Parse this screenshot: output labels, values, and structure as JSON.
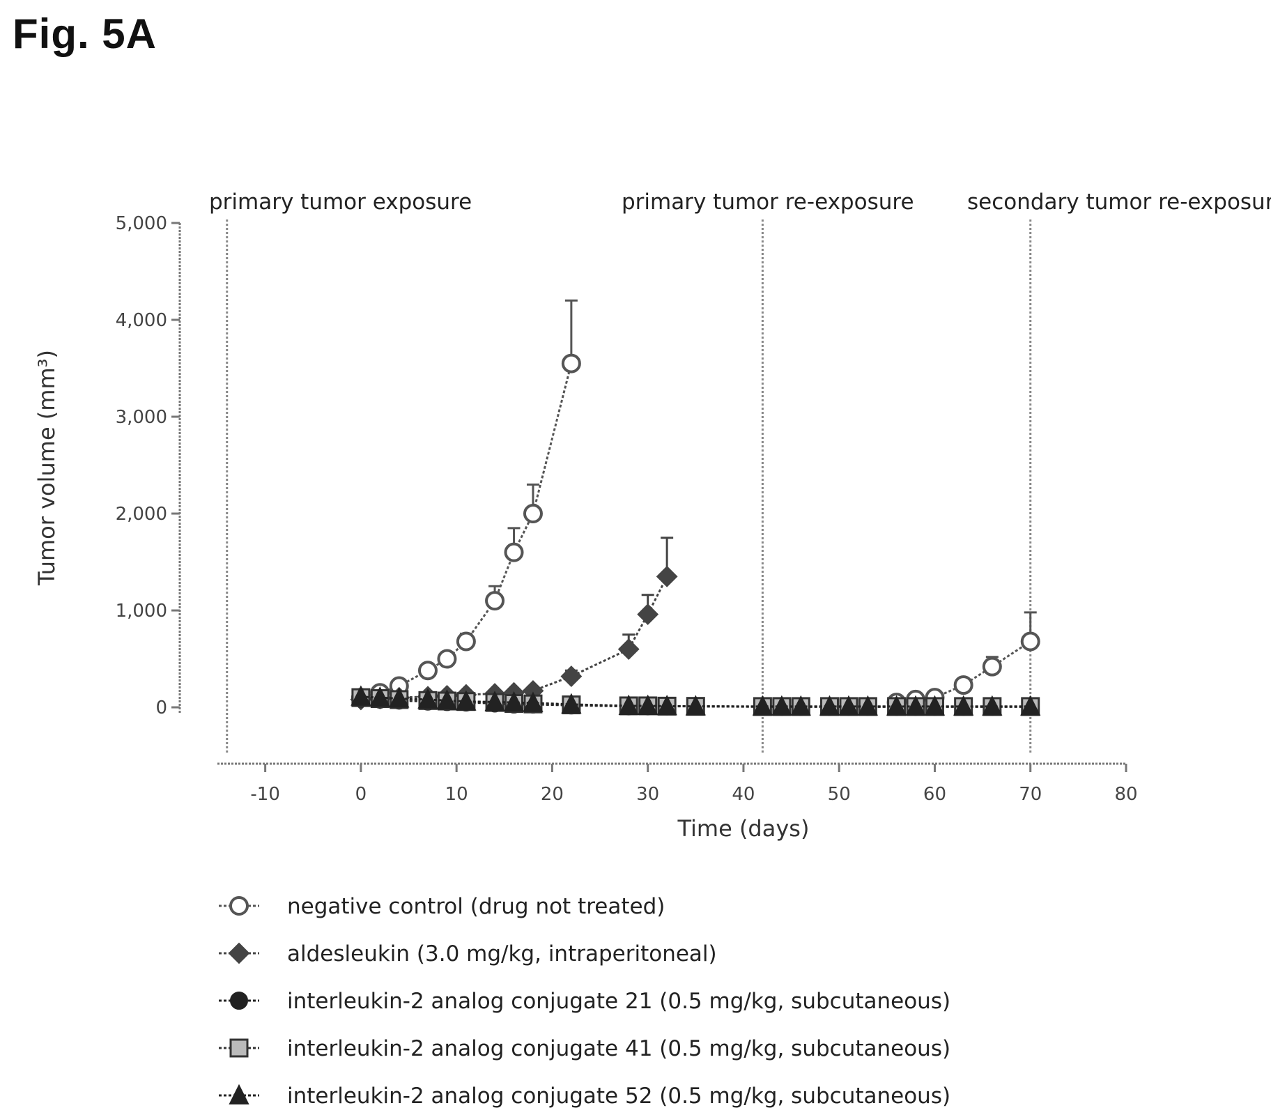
{
  "figure": {
    "title": "Fig. 5A"
  },
  "chart_data": {
    "type": "line",
    "title": "",
    "xlabel": "Time (days)",
    "ylabel": "Tumor volume (mm³)",
    "xlim": [
      -15,
      80
    ],
    "ylim": [
      -50,
      5000
    ],
    "x_ticks": [
      -10,
      0,
      10,
      20,
      30,
      40,
      50,
      60,
      70,
      80
    ],
    "x_tick_labels": [
      "-10",
      "0",
      "10",
      "20",
      "30",
      "40",
      "50",
      "60",
      "70",
      "80"
    ],
    "y_ticks": [
      0,
      1000,
      2000,
      3000,
      4000,
      5000
    ],
    "y_tick_labels": [
      "0",
      "1,000",
      "2,000",
      "3,000",
      "4,000",
      "5,000"
    ],
    "grid": false,
    "legend_position": "bottom",
    "annotations": [
      {
        "x": -14,
        "text": "primary tumor exposure"
      },
      {
        "x": 42,
        "text": "primary tumor re-exposure"
      },
      {
        "x": 70,
        "text": "secondary tumor re-exposure"
      }
    ],
    "series": [
      {
        "name": "negative control (drug not treated)",
        "marker": "open-circle",
        "color": "#555555",
        "segments": [
          {
            "x": [
              0,
              2,
              4,
              7,
              9,
              11,
              14,
              16,
              18,
              22
            ],
            "y": [
              100,
              150,
              220,
              380,
              500,
              680,
              1100,
              1600,
              2000,
              3550
            ],
            "err": [
              0,
              0,
              30,
              50,
              60,
              80,
              150,
              250,
              300,
              650
            ]
          },
          {
            "x": [
              56,
              58,
              60,
              63,
              66,
              70
            ],
            "y": [
              50,
              80,
              100,
              230,
              420,
              680
            ],
            "err": [
              0,
              0,
              20,
              50,
              100,
              300
            ]
          }
        ]
      },
      {
        "name": "aldesleukin (3.0 mg/kg, intraperitoneal)",
        "marker": "diamond",
        "color": "#444444",
        "segments": [
          {
            "x": [
              0,
              2,
              4,
              7,
              9,
              11,
              14,
              16,
              18,
              22,
              28,
              30,
              32
            ],
            "y": [
              80,
              90,
              100,
              110,
              120,
              130,
              140,
              150,
              170,
              320,
              600,
              960,
              1350
            ],
            "err": [
              0,
              0,
              0,
              0,
              0,
              0,
              30,
              30,
              40,
              60,
              150,
              200,
              400
            ]
          }
        ]
      },
      {
        "name": "interleukin-2 analog conjugate 21 (0.5 mg/kg, subcutaneous)",
        "marker": "filled-circle",
        "color": "#222222",
        "segments": [
          {
            "x": [
              0,
              2,
              4,
              7,
              9,
              11,
              14,
              16,
              18,
              22,
              28,
              30,
              32,
              35,
              42,
              44,
              46,
              49,
              51,
              53,
              56,
              58,
              60,
              63,
              66,
              70
            ],
            "y": [
              90,
              80,
              70,
              60,
              55,
              50,
              40,
              30,
              30,
              20,
              10,
              10,
              10,
              10,
              5,
              5,
              5,
              5,
              5,
              5,
              5,
              5,
              5,
              5,
              5,
              5
            ],
            "err": []
          }
        ]
      },
      {
        "name": "interleukin-2 analog conjugate 41 (0.5 mg/kg, subcutaneous)",
        "marker": "open-square",
        "color": "#333333",
        "segments": [
          {
            "x": [
              0,
              2,
              4,
              7,
              9,
              11,
              14,
              16,
              18,
              22,
              28,
              30,
              32,
              35,
              42,
              44,
              46,
              49,
              51,
              53,
              56,
              58,
              60,
              63,
              66,
              70
            ],
            "y": [
              100,
              90,
              80,
              70,
              65,
              60,
              50,
              40,
              35,
              25,
              15,
              15,
              12,
              10,
              8,
              8,
              8,
              8,
              8,
              8,
              8,
              8,
              8,
              8,
              8,
              8
            ],
            "err": []
          }
        ]
      },
      {
        "name": "interleukin-2 analog conjugate 52 (0.5 mg/kg, subcutaneous)",
        "marker": "triangle",
        "color": "#222222",
        "segments": [
          {
            "x": [
              0,
              2,
              4,
              7,
              9,
              11,
              14,
              16,
              18,
              22,
              28,
              30,
              32,
              35,
              42,
              44,
              46,
              49,
              51,
              53,
              56,
              58,
              60,
              63,
              66,
              70
            ],
            "y": [
              110,
              100,
              90,
              80,
              70,
              60,
              55,
              50,
              45,
              30,
              15,
              15,
              12,
              10,
              8,
              8,
              8,
              8,
              8,
              8,
              8,
              8,
              8,
              8,
              8,
              8
            ],
            "err": []
          }
        ]
      }
    ]
  }
}
